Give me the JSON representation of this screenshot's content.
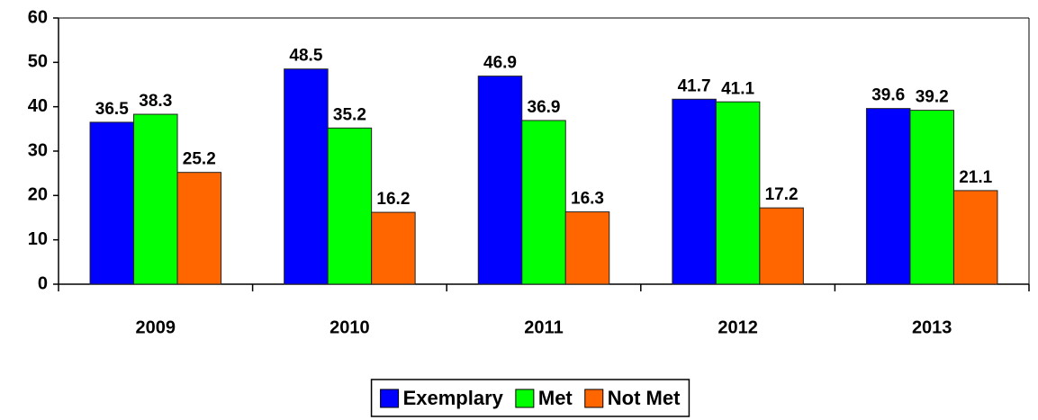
{
  "chart_data": {
    "type": "bar",
    "categories": [
      "2009",
      "2010",
      "2011",
      "2012",
      "2013"
    ],
    "series": [
      {
        "name": "Exemplary",
        "color": "#0000ff",
        "values": [
          36.5,
          48.5,
          46.9,
          41.7,
          39.6
        ]
      },
      {
        "name": "Met",
        "color": "#00ff00",
        "values": [
          38.3,
          35.2,
          36.9,
          41.1,
          39.2
        ]
      },
      {
        "name": "Not Met",
        "color": "#ff6600",
        "values": [
          25.2,
          16.2,
          16.3,
          17.2,
          21.1
        ]
      }
    ],
    "ylim": [
      0,
      60
    ],
    "yticks": [
      0,
      10,
      20,
      30,
      40,
      50,
      60
    ],
    "grid": false,
    "legend": "bottom"
  }
}
